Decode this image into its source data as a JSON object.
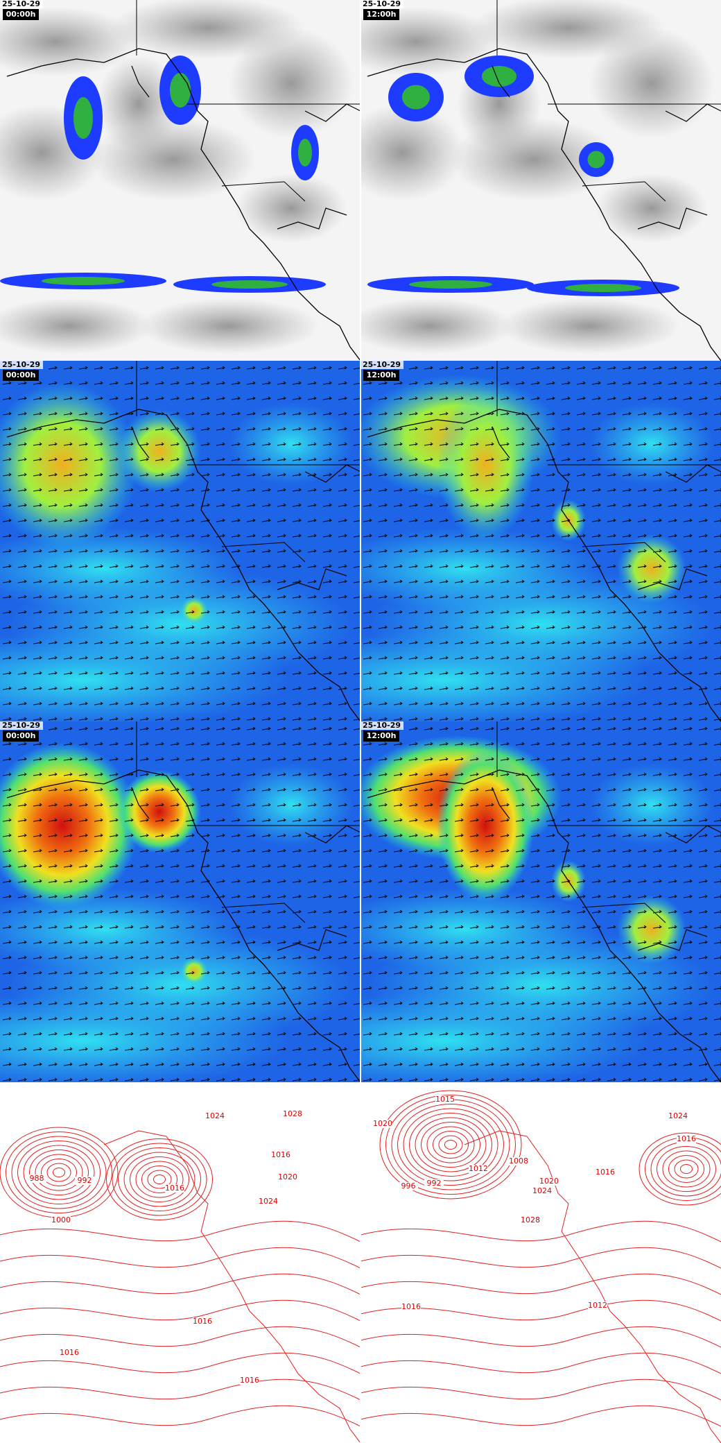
{
  "panels": [
    {
      "date": "25-10-29",
      "time": "00:00h"
    },
    {
      "date": "25-10-29",
      "time": "12:00h"
    },
    {
      "date": "25-10-29",
      "time": "00:00h"
    },
    {
      "date": "25-10-29",
      "time": "12:00h"
    },
    {
      "date": "25-10-29",
      "time": "00:00h"
    },
    {
      "date": "25-10-29",
      "time": "12:00h"
    }
  ],
  "isobar_labels": {
    "left": [
      "1024",
      "1028",
      "1016",
      "1020",
      "988",
      "992",
      "1000",
      "1016",
      "1024",
      "1016",
      "1016",
      "1016"
    ],
    "right": [
      "1015",
      "1020",
      "1024",
      "1016",
      "1008",
      "1012",
      "992",
      "996",
      "1020",
      "1024",
      "1028",
      "1016",
      "1012",
      "1016"
    ]
  }
}
